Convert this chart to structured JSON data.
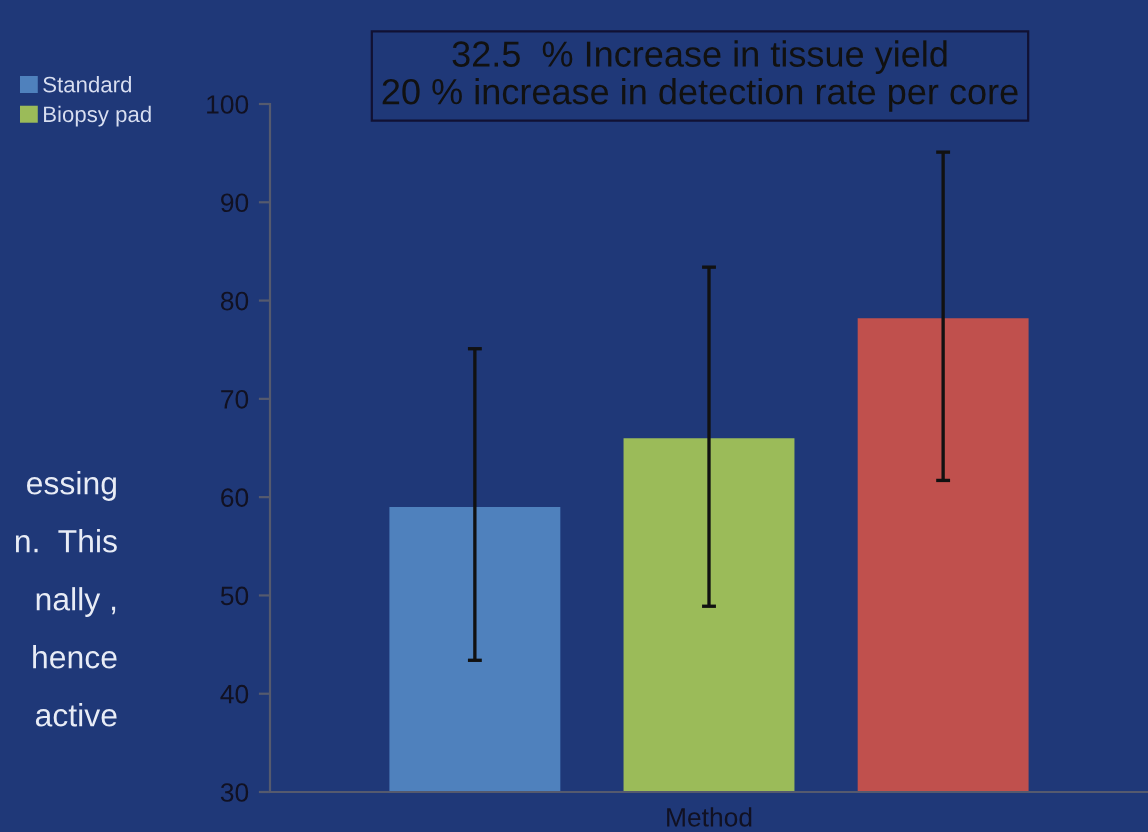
{
  "chart_data": {
    "type": "bar",
    "title": "32.5  % Increase in tissue yield\n20 % increase in detection rate per core",
    "xlabel": "Method",
    "categories": [
      null
    ],
    "series": [
      {
        "name": "Standard",
        "color": "#4f81bd",
        "values": [
          59.0
        ],
        "errors": [
          [
            43.4,
            75.1
          ]
        ]
      },
      {
        "name": "Biopsy pad",
        "color": "#9bbb59",
        "values": [
          66.0
        ],
        "errors": [
          [
            48.9,
            83.4
          ]
        ]
      },
      {
        "color": "#c0504d",
        "values": [
          78.2
        ],
        "errors": [
          [
            61.7,
            95.1
          ]
        ]
      }
    ],
    "ylim": [
      30,
      100
    ],
    "yticks": [
      30,
      40,
      50,
      60,
      70,
      80,
      90,
      100
    ],
    "grid": false,
    "legend": "left",
    "annotations": [
      "essing",
      "n.  This",
      "nally ,",
      "hence",
      "active"
    ]
  }
}
